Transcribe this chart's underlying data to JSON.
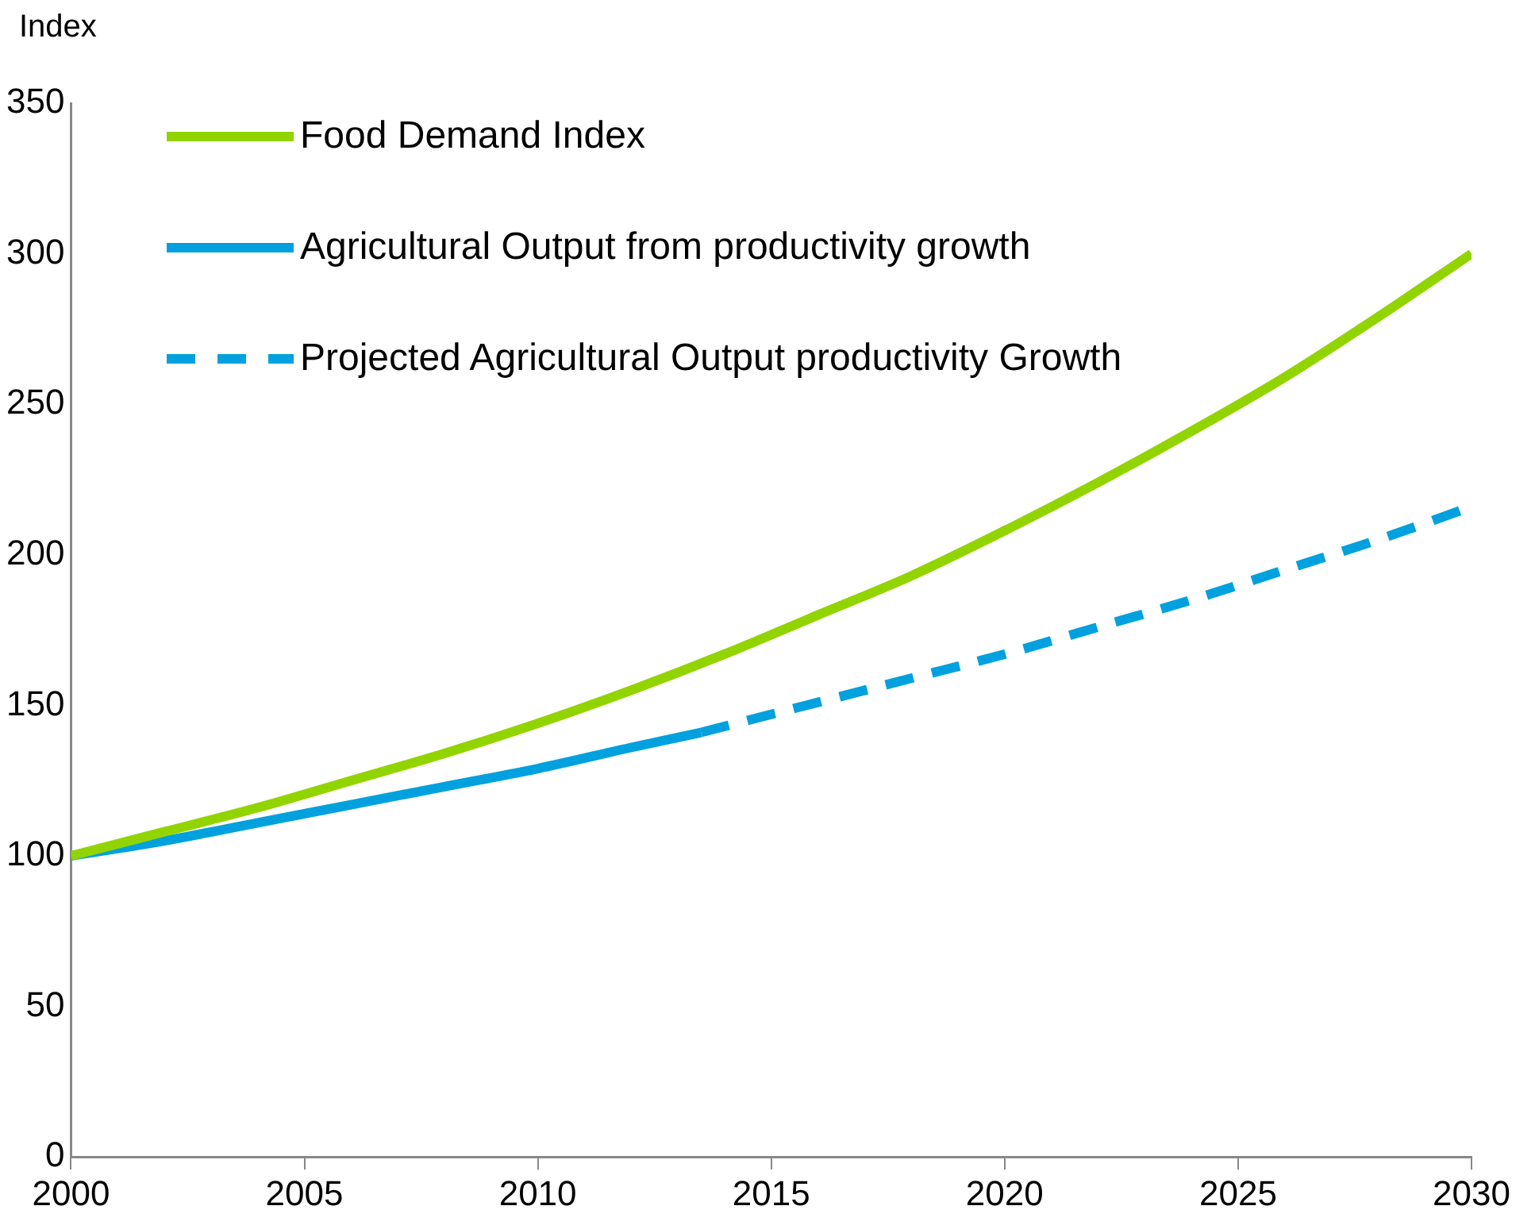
{
  "chart_data": {
    "type": "line",
    "ylabel": "Index",
    "xlim": [
      2000,
      2030
    ],
    "xticks": [
      2000,
      2005,
      2010,
      2015,
      2020,
      2025,
      2030
    ],
    "ylim": [
      0,
      350
    ],
    "yticks": [
      0,
      50,
      100,
      150,
      200,
      250,
      300,
      350
    ],
    "grid": false,
    "legend": "top left",
    "marker": "none",
    "series": [
      {
        "name": "Food Demand Index",
        "color": "#92d400",
        "line_style": "solid",
        "x": [
          2000,
          2002,
          2004,
          2006,
          2008,
          2010,
          2012,
          2014,
          2016,
          2018,
          2020,
          2022,
          2024,
          2026,
          2028,
          2030
        ],
        "values": [
          100,
          108,
          116,
          125,
          134,
          144,
          155,
          167,
          180,
          193,
          208,
          224,
          241,
          259,
          279,
          300
        ]
      },
      {
        "name": "Agricultural Output from productivity growth",
        "color": "#00a1de",
        "line_style": "solid",
        "x": [
          2000,
          2002,
          2004,
          2006,
          2008,
          2010,
          2012,
          2013.5
        ],
        "values": [
          100,
          105,
          111,
          117,
          123,
          129,
          136,
          141
        ]
      },
      {
        "name": "Projected Agricultural Output productivity Growth",
        "color": "#00a1de",
        "line_style": "dashed",
        "x": [
          2013.5,
          2016,
          2018,
          2020,
          2022,
          2024,
          2026,
          2028,
          2030
        ],
        "values": [
          141,
          151,
          159,
          167,
          176,
          185,
          195,
          205,
          216
        ]
      }
    ]
  }
}
